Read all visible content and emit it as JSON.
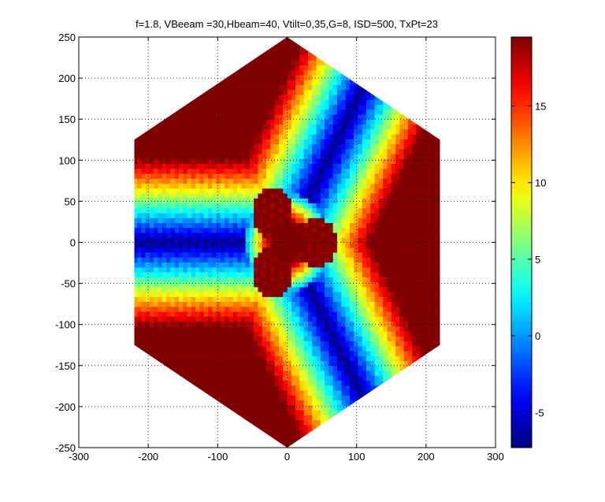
{
  "chart_data": {
    "type": "heatmap",
    "title": "f=1.8, VBeeam =30,Hbeam=40, Vtilt=0,35,G=8, ISD=500, TxPt=23",
    "xlabel": "",
    "ylabel": "",
    "xlim": [
      -300,
      300
    ],
    "ylim": [
      -250,
      250
    ],
    "x_ticks": [
      -300,
      -200,
      -100,
      0,
      100,
      200,
      300
    ],
    "y_ticks": [
      250,
      200,
      150,
      100,
      50,
      0,
      -50,
      -100,
      -150,
      -200,
      -250
    ],
    "grid": true,
    "grid_style": "dotted",
    "colormap": "jet",
    "colorbar": {
      "clim": [
        -7.3,
        19.5
      ],
      "ticks": [
        -5,
        0,
        5,
        10,
        15
      ],
      "placement": "right"
    },
    "layout_region": "hexagon",
    "hexagon_vertices": [
      [
        0,
        250
      ],
      [
        220,
        125
      ],
      [
        220,
        -125
      ],
      [
        0,
        -250
      ],
      [
        -220,
        -125
      ],
      [
        -220,
        125
      ]
    ],
    "sector_boresights_deg": [
      0,
      120,
      240
    ],
    "min_value_lines_deg": [
      60,
      180,
      300
    ]
  }
}
